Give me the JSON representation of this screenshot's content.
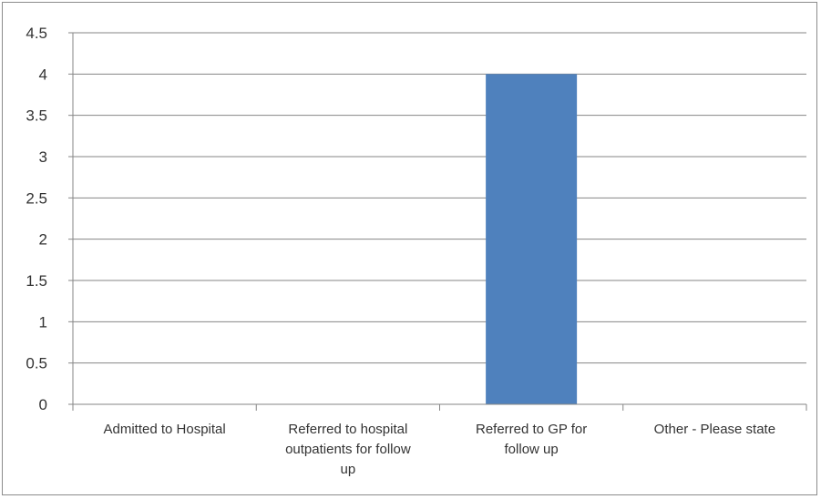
{
  "chart_data": {
    "type": "bar",
    "title": "",
    "xlabel": "",
    "ylabel": "",
    "categories": [
      [
        "Admitted to Hospital"
      ],
      [
        "Referred to hospital",
        "outpatients for follow",
        "up"
      ],
      [
        "Referred to GP for",
        "follow up"
      ],
      [
        "Other - Please state"
      ]
    ],
    "values": [
      0,
      0,
      4,
      0
    ],
    "ylim": [
      0,
      4.5
    ],
    "yticks": [
      "0",
      "0.5",
      "1",
      "1.5",
      "2",
      "2.5",
      "3",
      "3.5",
      "4",
      "4.5"
    ],
    "grid": true,
    "legend": "none",
    "bar_color": "#4f81bd",
    "grid_color": "#868686"
  }
}
